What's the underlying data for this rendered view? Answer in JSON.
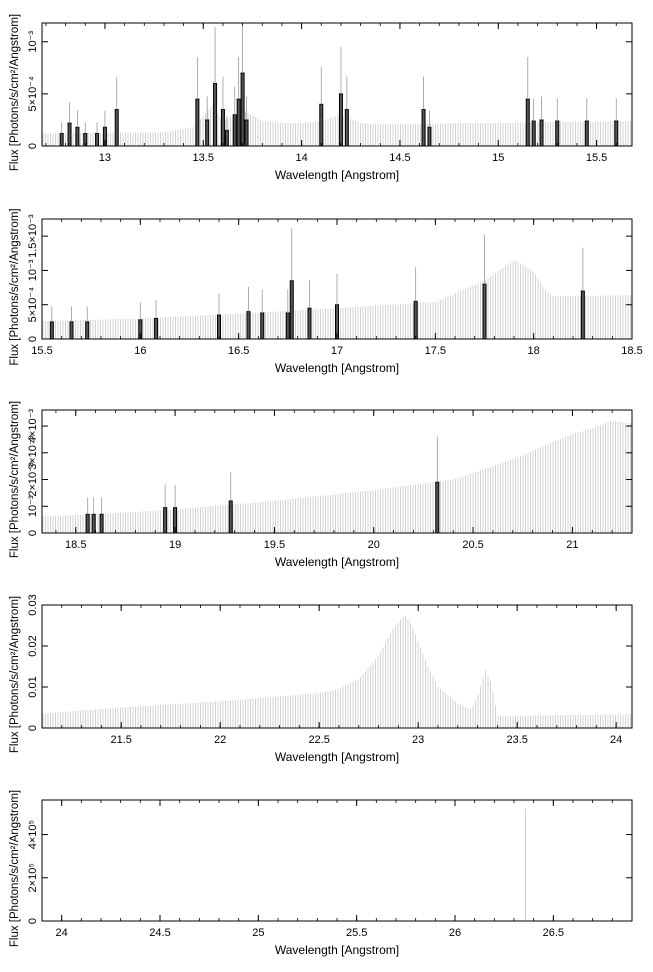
{
  "x_label": "Wavelength [Angstrom]",
  "y_label": "Flux [Photons/s/cm²/Angstrom]",
  "colors": {
    "model": "#c8c8c8",
    "data": "#000000",
    "axis": "#000000",
    "background": "#ffffff"
  },
  "chart_data": [
    {
      "type": "bar",
      "xlim": [
        12.68,
        15.68
      ],
      "ylim": [
        0,
        0.00118
      ],
      "xticks": [
        13,
        13.5,
        14,
        14.5,
        15,
        15.5
      ],
      "xtick_labels": [
        "13",
        "13.5",
        "14",
        "14.5",
        "15",
        "15.5"
      ],
      "yticks": [
        0,
        0.0005,
        0.001
      ],
      "ytick_labels": [
        "0",
        "5×10⁻⁴",
        "10⁻³"
      ],
      "xlabel": "Wavelength [Angstrom]",
      "ylabel": "Flux [Photons/s/cm²/Angstrom]",
      "model_x": [
        12.7,
        13.0,
        13.3,
        13.45,
        13.55,
        13.6,
        13.7,
        13.8,
        13.9,
        14.0,
        14.1,
        14.2,
        14.3,
        14.4,
        14.6,
        14.8,
        15.0,
        15.2,
        15.4,
        15.68
      ],
      "model_y": [
        0.00012,
        0.00013,
        0.00013,
        0.00018,
        0.0004,
        0.00023,
        0.00035,
        0.00024,
        0.00022,
        0.00022,
        0.00024,
        0.0003,
        0.00022,
        0.00021,
        0.00021,
        0.00022,
        0.00022,
        0.00023,
        0.00023,
        0.00024
      ],
      "x": [
        12.78,
        12.82,
        12.86,
        12.9,
        12.96,
        13.0,
        13.06,
        13.47,
        13.52,
        13.56,
        13.6,
        13.62,
        13.66,
        13.68,
        13.7,
        13.72,
        14.1,
        14.2,
        14.23,
        14.62,
        14.65,
        15.15,
        15.18,
        15.22,
        15.3,
        15.45,
        15.6
      ],
      "values": [
        0.00012,
        0.00022,
        0.00018,
        0.00012,
        0.00012,
        0.00018,
        0.00035,
        0.00045,
        0.00025,
        0.0006,
        0.00035,
        0.00015,
        0.0003,
        0.00045,
        0.0007,
        0.00025,
        0.0004,
        0.0005,
        0.00035,
        0.00035,
        0.00018,
        0.00045,
        0.00024,
        0.00025,
        0.00024,
        0.00024,
        0.00024
      ]
    },
    {
      "type": "bar",
      "xlim": [
        15.5,
        18.5
      ],
      "ylim": [
        0,
        0.00175
      ],
      "xticks": [
        15.5,
        16,
        16.5,
        17,
        17.5,
        18,
        18.5
      ],
      "xtick_labels": [
        "15.5",
        "16",
        "16.5",
        "17",
        "17.5",
        "18",
        "18.5"
      ],
      "yticks": [
        0,
        0.0005,
        0.001,
        0.0015
      ],
      "ytick_labels": [
        "0",
        "5×10⁻⁴",
        "10⁻³",
        "1.5×10⁻³"
      ],
      "xlabel": "Wavelength [Angstrom]",
      "ylabel": "Flux [Photons/s/cm²/Angstrom]",
      "model_x": [
        15.5,
        16.0,
        16.5,
        17.0,
        17.5,
        17.75,
        17.85,
        17.9,
        17.95,
        18.0,
        18.05,
        18.1,
        18.5
      ],
      "model_y": [
        0.00026,
        0.0003,
        0.00037,
        0.00045,
        0.00054,
        0.00085,
        0.00105,
        0.00115,
        0.00108,
        0.00098,
        0.00075,
        0.00062,
        0.00064
      ],
      "x": [
        15.55,
        15.65,
        15.73,
        16.0,
        16.08,
        16.4,
        16.55,
        16.62,
        16.75,
        16.77,
        16.86,
        17.0,
        17.4,
        17.75,
        18.25
      ],
      "values": [
        0.00025,
        0.00025,
        0.00025,
        0.00028,
        0.0003,
        0.00035,
        0.0004,
        0.00038,
        0.00038,
        0.00085,
        0.00045,
        0.0005,
        0.00055,
        0.0008,
        0.0007
      ]
    },
    {
      "type": "bar",
      "xlim": [
        18.33,
        21.3
      ],
      "ylim": [
        0,
        0.0046
      ],
      "xticks": [
        18.5,
        19,
        19.5,
        20,
        20.5,
        21
      ],
      "xtick_labels": [
        "18.5",
        "19",
        "19.5",
        "20",
        "20.5",
        "21"
      ],
      "yticks": [
        0,
        0.001,
        0.002,
        0.003,
        0.004
      ],
      "ytick_labels": [
        "0",
        "10⁻³",
        "2×10⁻³",
        "3×10⁻³",
        "4×10⁻³"
      ],
      "xlabel": "Wavelength [Angstrom]",
      "ylabel": "Flux [Photons/s/cm²/Angstrom]",
      "model_x": [
        18.33,
        18.6,
        19.0,
        19.5,
        20.0,
        20.4,
        20.6,
        20.75,
        20.9,
        21.0,
        21.1,
        21.2,
        21.3
      ],
      "model_y": [
        0.00062,
        0.0007,
        0.00088,
        0.0012,
        0.0016,
        0.002,
        0.0025,
        0.0029,
        0.0034,
        0.0037,
        0.0039,
        0.0042,
        0.0041
      ],
      "x": [
        18.56,
        18.59,
        18.63,
        18.95,
        19.0,
        19.28,
        20.32
      ],
      "values": [
        0.0007,
        0.0007,
        0.0007,
        0.00095,
        0.00095,
        0.0012,
        0.0019
      ]
    },
    {
      "type": "area",
      "xlim": [
        21.1,
        24.08
      ],
      "ylim": [
        0,
        0.03
      ],
      "xticks": [
        21.5,
        22,
        22.5,
        23,
        23.5,
        24
      ],
      "xtick_labels": [
        "21.5",
        "22",
        "22.5",
        "23",
        "23.5",
        "24"
      ],
      "yticks": [
        0,
        0.01,
        0.02,
        0.03
      ],
      "ytick_labels": [
        "0",
        "0.01",
        "0.02",
        "0.03"
      ],
      "xlabel": "Wavelength [Angstrom]",
      "ylabel": "Flux [Photons/s/cm²/Angstrom]",
      "model_x": [
        21.1,
        21.5,
        22.0,
        22.5,
        22.6,
        22.7,
        22.8,
        22.87,
        22.93,
        22.97,
        23.0,
        23.05,
        23.1,
        23.2,
        23.27,
        23.3,
        23.34,
        23.37,
        23.4,
        23.5,
        24.0,
        24.08
      ],
      "model_y": [
        0.0035,
        0.005,
        0.0065,
        0.0085,
        0.0095,
        0.012,
        0.0175,
        0.024,
        0.0275,
        0.025,
        0.021,
        0.015,
        0.01,
        0.006,
        0.0045,
        0.008,
        0.014,
        0.011,
        0.003,
        0.003,
        0.0033,
        0.0034
      ],
      "x": [],
      "values": []
    },
    {
      "type": "area",
      "xlim": [
        23.9,
        26.9
      ],
      "ylim": [
        0,
        560000
      ],
      "xticks": [
        24,
        24.5,
        25,
        25.5,
        26,
        26.5
      ],
      "xtick_labels": [
        "24",
        "24.5",
        "25",
        "25.5",
        "26",
        "26.5"
      ],
      "yticks": [
        0,
        200000,
        400000
      ],
      "ytick_labels": [
        "0",
        "2×10⁵",
        "4×10⁵"
      ],
      "xlabel": "Wavelength [Angstrom]",
      "ylabel": "Flux [Photons/s/cm²/Angstrom]",
      "model_x": [
        26.355,
        26.358,
        26.361
      ],
      "model_y": [
        40000,
        520000,
        30000
      ],
      "x": [],
      "values": []
    }
  ]
}
